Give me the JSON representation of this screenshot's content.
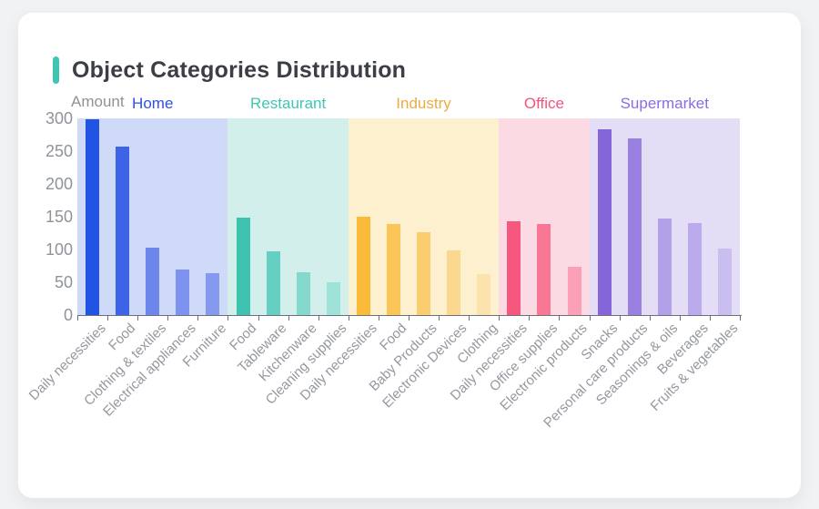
{
  "card": {
    "title": "Object Categories Distribution",
    "accent_color": "#3ec6b4"
  },
  "chart_data": {
    "type": "bar",
    "title": "Object Categories Distribution",
    "ylabel": "Amount",
    "xlabel": "",
    "ylim": [
      0,
      300
    ],
    "yticks": [
      300,
      250,
      200,
      150,
      100,
      50,
      0
    ],
    "grid": false,
    "legend_position": "top-inline-group-labels",
    "axis_color": "#6e7079",
    "groups": [
      {
        "name": "Home",
        "label_color": "#2d52dd",
        "band_color": "#cfdaf8",
        "bars": [
          {
            "category": "Daily necessities",
            "value": 298,
            "color": "#2254e4"
          },
          {
            "category": "Food",
            "value": 257,
            "color": "#3d64e6"
          },
          {
            "category": "Clothing & textiles",
            "value": 103,
            "color": "#6c86ec"
          },
          {
            "category": "Electrical appliances",
            "value": 69,
            "color": "#7d93ee"
          },
          {
            "category": "Furniture",
            "value": 64,
            "color": "#8599ee"
          }
        ]
      },
      {
        "name": "Restaurant",
        "label_color": "#3fc6b3",
        "band_color": "#d3efeb",
        "bars": [
          {
            "category": "Food",
            "value": 148,
            "color": "#3ec3b0"
          },
          {
            "category": "Tableware",
            "value": 97,
            "color": "#65cfc1"
          },
          {
            "category": "Kitchenware",
            "value": 65,
            "color": "#84d8cc"
          },
          {
            "category": "Cleaning supplies",
            "value": 50,
            "color": "#9fe2d8"
          }
        ]
      },
      {
        "name": "Industry",
        "label_color": "#e9ad43",
        "band_color": "#fdf0cf",
        "bars": [
          {
            "category": "Daily necessities",
            "value": 150,
            "color": "#fabb3b"
          },
          {
            "category": "Food",
            "value": 139,
            "color": "#fbc558"
          },
          {
            "category": "Baby Products",
            "value": 126,
            "color": "#facd6e"
          },
          {
            "category": "Electronic Devices",
            "value": 99,
            "color": "#fbd88f"
          },
          {
            "category": "Clothing",
            "value": 62,
            "color": "#fce3ae"
          }
        ]
      },
      {
        "name": "Office",
        "label_color": "#f4537f",
        "band_color": "#fcdae4",
        "bars": [
          {
            "category": "Daily necessities",
            "value": 143,
            "color": "#f6577e"
          },
          {
            "category": "Office supplies",
            "value": 139,
            "color": "#f87795"
          },
          {
            "category": "Electronic products",
            "value": 74,
            "color": "#fba0b7"
          }
        ]
      },
      {
        "name": "Supermarket",
        "label_color": "#8b6ce2",
        "band_color": "#e3ddf6",
        "bars": [
          {
            "category": "Snacks",
            "value": 284,
            "color": "#8566da"
          },
          {
            "category": "Personal care products",
            "value": 270,
            "color": "#9a80e1"
          },
          {
            "category": "Seasonings & oils",
            "value": 147,
            "color": "#b2a0e8"
          },
          {
            "category": "Beverages",
            "value": 140,
            "color": "#bcabec"
          },
          {
            "category": "Fruits & vegetables",
            "value": 101,
            "color": "#cabdf0"
          }
        ]
      }
    ]
  }
}
